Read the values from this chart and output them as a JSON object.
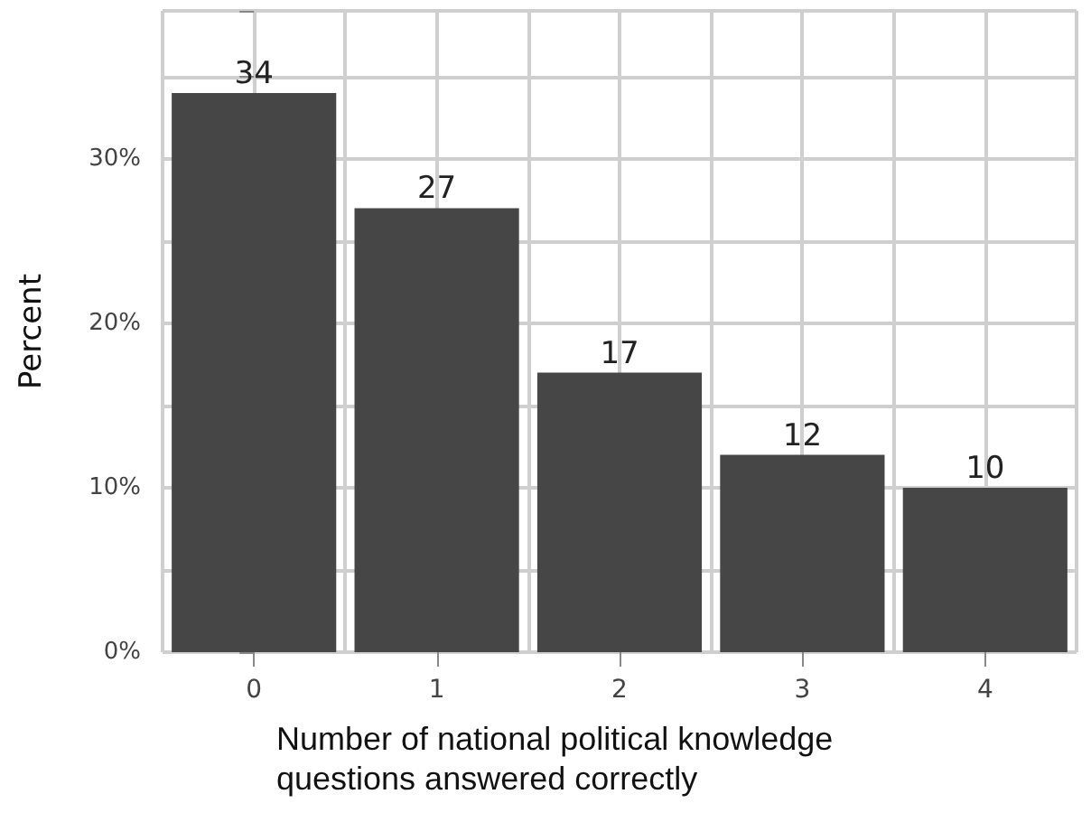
{
  "chart_data": {
    "type": "bar",
    "xlabel": "Number of national political knowledge questions answered correctly",
    "ylabel": "Percent",
    "categories": [
      "0",
      "1",
      "2",
      "3",
      "4"
    ],
    "values": [
      34,
      27,
      17,
      12,
      10
    ],
    "color": "#464646",
    "data_labels": true,
    "ylim": [
      0,
      39
    ],
    "yticks": [
      {
        "value": 0,
        "label": "0%"
      },
      {
        "value": 5,
        "label": null
      },
      {
        "value": 10,
        "label": "10%"
      },
      {
        "value": 15,
        "label": null
      },
      {
        "value": 20,
        "label": "20%"
      },
      {
        "value": 25,
        "label": null
      },
      {
        "value": 30,
        "label": "30%"
      },
      {
        "value": 35,
        "label": null
      }
    ],
    "grid": true
  }
}
